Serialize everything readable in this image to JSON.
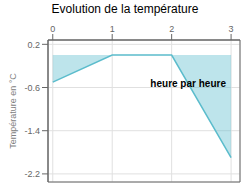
{
  "chart_data": {
    "type": "area",
    "title": "Evolution de la température",
    "ylabel": "Température en °C",
    "annotations": [
      "heure par heure"
    ],
    "x": [
      0,
      1,
      2,
      3
    ],
    "values": [
      -0.5,
      0.0,
      0.0,
      -1.9
    ],
    "color": "#5bbccc",
    "xlim": [
      -0.08,
      3.15
    ],
    "xticks": [
      0,
      1,
      2,
      3
    ],
    "ylim": [
      -2.35,
      0.28
    ],
    "yticks": [
      0.2,
      -0.6,
      -1.4,
      -2.2
    ],
    "grid": true
  }
}
